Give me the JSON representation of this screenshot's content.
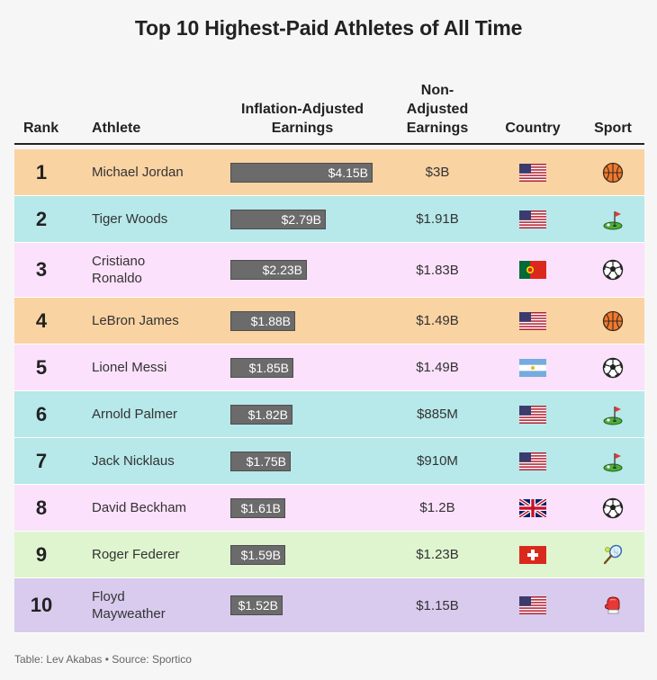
{
  "title": "Top 10 Highest-Paid Athletes of All Time",
  "headers": {
    "rank": "Rank",
    "athlete": "Athlete",
    "inflation_line1": "Inflation-Adjusted",
    "inflation_line2": "Earnings",
    "nonadj_line1": "Non-",
    "nonadj_line2": "Adjusted",
    "nonadj_line3": "Earnings",
    "country": "Country",
    "sport": "Sport"
  },
  "footer": "Table: Lev Akabas • Source: Sportico",
  "colors": {
    "basketball": "#fad3a3",
    "golf": "#b7e8ea",
    "soccer": "#fbe1fb",
    "tennis": "#dff5cf",
    "boxing": "#d8cbee",
    "bar": "#6b6b6b"
  },
  "chart_data": {
    "type": "table",
    "bar_max": 4.15,
    "rows": [
      {
        "rank": "1",
        "athlete_lines": [
          "Michael Jordan"
        ],
        "adjusted": 4.15,
        "adjusted_label": "$4.15B",
        "non_adjusted": "$3B",
        "country": "flag-usa",
        "sport": "basketball-icon"
      },
      {
        "rank": "2",
        "athlete_lines": [
          "Tiger Woods"
        ],
        "adjusted": 2.79,
        "adjusted_label": "$2.79B",
        "non_adjusted": "$1.91B",
        "country": "flag-usa",
        "sport": "golf-icon"
      },
      {
        "rank": "3",
        "athlete_lines": [
          "Cristiano",
          "Ronaldo"
        ],
        "adjusted": 2.23,
        "adjusted_label": "$2.23B",
        "non_adjusted": "$1.83B",
        "country": "flag-portugal",
        "sport": "soccer-ball-icon"
      },
      {
        "rank": "4",
        "athlete_lines": [
          "LeBron James"
        ],
        "adjusted": 1.88,
        "adjusted_label": "$1.88B",
        "non_adjusted": "$1.49B",
        "country": "flag-usa",
        "sport": "basketball-icon"
      },
      {
        "rank": "5",
        "athlete_lines": [
          "Lionel Messi"
        ],
        "adjusted": 1.85,
        "adjusted_label": "$1.85B",
        "non_adjusted": "$1.49B",
        "country": "flag-argentina",
        "sport": "soccer-ball-icon"
      },
      {
        "rank": "6",
        "athlete_lines": [
          "Arnold Palmer"
        ],
        "adjusted": 1.82,
        "adjusted_label": "$1.82B",
        "non_adjusted": "$885M",
        "country": "flag-usa",
        "sport": "golf-icon"
      },
      {
        "rank": "7",
        "athlete_lines": [
          "Jack Nicklaus"
        ],
        "adjusted": 1.75,
        "adjusted_label": "$1.75B",
        "non_adjusted": "$910M",
        "country": "flag-usa",
        "sport": "golf-icon"
      },
      {
        "rank": "8",
        "athlete_lines": [
          "David Beckham"
        ],
        "adjusted": 1.61,
        "adjusted_label": "$1.61B",
        "non_adjusted": "$1.2B",
        "country": "flag-uk",
        "sport": "soccer-ball-icon"
      },
      {
        "rank": "9",
        "athlete_lines": [
          "Roger Federer"
        ],
        "adjusted": 1.59,
        "adjusted_label": "$1.59B",
        "non_adjusted": "$1.23B",
        "country": "flag-switzerland",
        "sport": "tennis-icon"
      },
      {
        "rank": "10",
        "athlete_lines": [
          "Floyd",
          "Mayweather"
        ],
        "adjusted": 1.52,
        "adjusted_label": "$1.52B",
        "non_adjusted": "$1.15B",
        "country": "flag-usa",
        "sport": "boxing-glove-icon"
      }
    ]
  }
}
